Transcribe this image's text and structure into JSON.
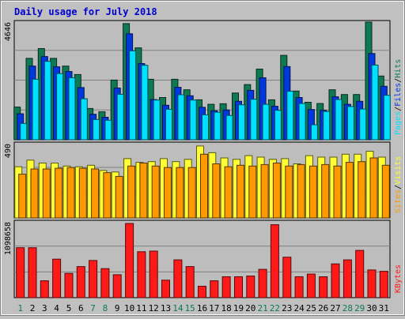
{
  "title": "Daily usage for July 2018",
  "colors": {
    "background": "#c0c0c0",
    "plot_bg": "#bdbdbd",
    "title": "#0000cc",
    "pages": "#00e0ff",
    "files": "#0038e0",
    "hits": "#0f7a52",
    "visits": "#ffff33",
    "sites": "#ff9900",
    "kbytes": "#ff1a1a",
    "weekday_label": "#000000",
    "weekend_label": "#0f7a52"
  },
  "chart_data": [
    {
      "type": "bar",
      "title": "Daily usage for July 2018",
      "categories": [
        "1",
        "2",
        "3",
        "4",
        "5",
        "6",
        "7",
        "8",
        "9",
        "10",
        "11",
        "12",
        "13",
        "14",
        "15",
        "16",
        "17",
        "18",
        "19",
        "20",
        "21",
        "22",
        "23",
        "24",
        "25",
        "26",
        "27",
        "28",
        "29",
        "30",
        "31"
      ],
      "weekend_days": [
        "1",
        "7",
        "8",
        "14",
        "15",
        "21",
        "22",
        "28",
        "29"
      ],
      "ylabel_parts": [
        "Pages",
        "/",
        "Files",
        "/",
        "Hits"
      ],
      "ymax_label": "4646",
      "ylim": [
        0,
        4646
      ],
      "grid": true,
      "series": [
        {
          "name": "Hits",
          "values": [
            1310,
            3260,
            3650,
            3260,
            2950,
            2610,
            1250,
            1120,
            2390,
            4650,
            3680,
            2420,
            1690,
            2420,
            2000,
            1600,
            1420,
            1440,
            1870,
            2210,
            2830,
            1600,
            3380,
            1950,
            1500,
            1450,
            2000,
            1810,
            1810,
            4780,
            2550
          ]
        },
        {
          "name": "Files",
          "values": [
            1040,
            2950,
            3330,
            2920,
            2730,
            2090,
            1020,
            900,
            2070,
            4240,
            3050,
            1610,
            1380,
            2100,
            1760,
            1300,
            1160,
            1190,
            1540,
            1980,
            2480,
            1340,
            2930,
            1690,
            1210,
            1180,
            1720,
            1420,
            1540,
            3450,
            2140
          ]
        },
        {
          "name": "Pages",
          "values": [
            650,
            2420,
            3140,
            2650,
            2480,
            1640,
            810,
            780,
            1820,
            3560,
            2980,
            1590,
            1220,
            1800,
            1590,
            1000,
            1100,
            970,
            1400,
            1620,
            1420,
            1180,
            1940,
            1450,
            600,
            1130,
            1610,
            1330,
            1230,
            2990,
            1780
          ]
        }
      ]
    },
    {
      "type": "bar",
      "categories": [
        "1",
        "2",
        "3",
        "4",
        "5",
        "6",
        "7",
        "8",
        "9",
        "10",
        "11",
        "12",
        "13",
        "14",
        "15",
        "16",
        "17",
        "18",
        "19",
        "20",
        "21",
        "22",
        "23",
        "24",
        "25",
        "26",
        "27",
        "28",
        "29",
        "30",
        "31"
      ],
      "ylabel_parts": [
        "Sites",
        "/",
        "Visits"
      ],
      "ymax_label": "490",
      "ylim": [
        0,
        490
      ],
      "grid": true,
      "series": [
        {
          "name": "Visits",
          "values": [
            345,
            390,
            370,
            370,
            350,
            345,
            355,
            320,
            310,
            400,
            375,
            380,
            400,
            380,
            395,
            485,
            440,
            405,
            395,
            420,
            410,
            395,
            400,
            365,
            420,
            410,
            410,
            430,
            430,
            450,
            410
          ]
        },
        {
          "name": "Sites",
          "values": [
            295,
            330,
            330,
            335,
            340,
            335,
            330,
            305,
            280,
            350,
            370,
            350,
            340,
            340,
            340,
            430,
            365,
            345,
            355,
            350,
            360,
            370,
            350,
            360,
            350,
            360,
            350,
            375,
            380,
            405,
            355
          ]
        }
      ]
    },
    {
      "type": "bar",
      "categories": [
        "1",
        "2",
        "3",
        "4",
        "5",
        "6",
        "7",
        "8",
        "9",
        "10",
        "11",
        "12",
        "13",
        "14",
        "15",
        "16",
        "17",
        "18",
        "19",
        "20",
        "21",
        "22",
        "23",
        "24",
        "25",
        "26",
        "27",
        "28",
        "29",
        "30",
        "31"
      ],
      "ylabel_parts": [
        "KBytes"
      ],
      "ymax_label": "1098658",
      "ylim": [
        0,
        1098658
      ],
      "grid": true,
      "series": [
        {
          "name": "KBytes",
          "values": [
            740000,
            740000,
            250000,
            570000,
            360000,
            460000,
            550000,
            430000,
            340000,
            1098658,
            680000,
            690000,
            260000,
            560000,
            460000,
            170000,
            250000,
            310000,
            310000,
            320000,
            420000,
            1080000,
            600000,
            310000,
            350000,
            310000,
            500000,
            560000,
            700000,
            410000,
            390000
          ]
        }
      ]
    }
  ]
}
